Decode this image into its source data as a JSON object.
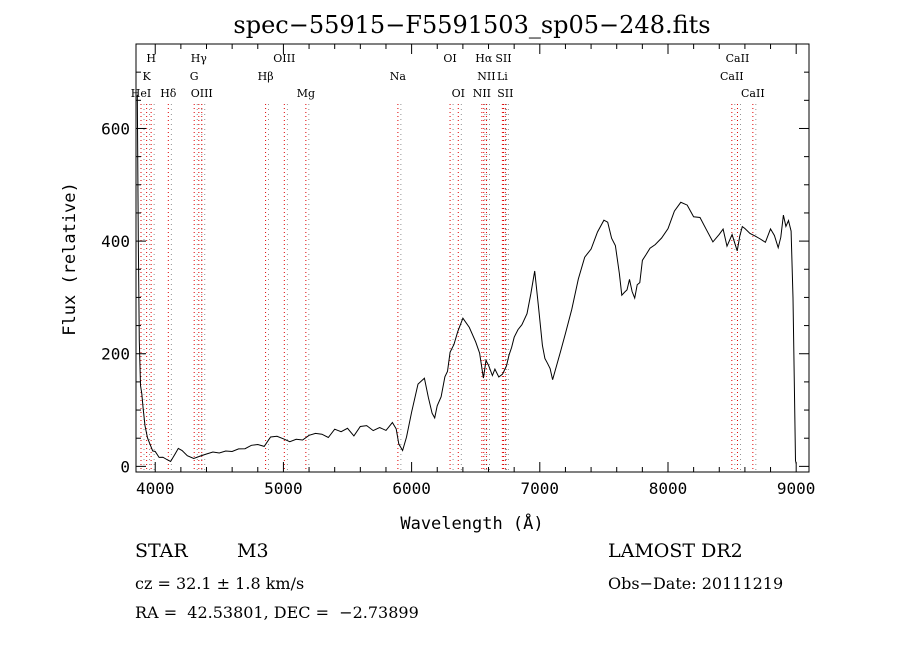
{
  "chart_data": {
    "type": "line",
    "title": "spec−55915−F5591503_sp05−248.fits",
    "xlabel": "Wavelength (Å)",
    "ylabel": "Flux (relative)",
    "xlim": [
      3850,
      9100
    ],
    "ylim": [
      -10,
      750
    ],
    "x_ticks": [
      4000,
      5000,
      6000,
      7000,
      8000,
      9000
    ],
    "y_ticks": [
      0,
      200,
      400,
      600
    ],
    "grid": false,
    "series": [
      {
        "name": "flux",
        "x": [
          3860,
          3868,
          3876,
          3885,
          3895,
          3905,
          3920,
          3940,
          3960,
          3980,
          4000,
          4030,
          4060,
          4090,
          4120,
          4150,
          4180,
          4210,
          4250,
          4300,
          4350,
          4400,
          4450,
          4500,
          4550,
          4600,
          4650,
          4700,
          4750,
          4800,
          4850,
          4900,
          4950,
          5000,
          5050,
          5100,
          5150,
          5200,
          5250,
          5300,
          5350,
          5400,
          5450,
          5500,
          5550,
          5600,
          5650,
          5700,
          5750,
          5800,
          5850,
          5880,
          5900,
          5930,
          5960,
          6000,
          6050,
          6100,
          6130,
          6160,
          6180,
          6200,
          6230,
          6260,
          6280,
          6300,
          6330,
          6360,
          6400,
          6450,
          6500,
          6530,
          6560,
          6580,
          6600,
          6630,
          6650,
          6680,
          6710,
          6740,
          6760,
          6780,
          6800,
          6830,
          6860,
          6900,
          6930,
          6960,
          6990,
          7020,
          7040,
          7060,
          7080,
          7100,
          7130,
          7160,
          7200,
          7250,
          7300,
          7350,
          7400,
          7450,
          7500,
          7530,
          7560,
          7590,
          7620,
          7640,
          7660,
          7680,
          7700,
          7720,
          7740,
          7760,
          7780,
          7800,
          7830,
          7860,
          7900,
          7950,
          8000,
          8050,
          8100,
          8150,
          8200,
          8250,
          8300,
          8350,
          8400,
          8430,
          8460,
          8500,
          8540,
          8560,
          8580,
          8600,
          8640,
          8680,
          8720,
          8760,
          8800,
          8830,
          8860,
          8880,
          8900,
          8920,
          8940,
          8960,
          8975,
          8985,
          8995,
          9000
        ],
        "values": [
          660,
          400,
          220,
          140,
          125,
          100,
          70,
          50,
          40,
          30,
          30,
          20,
          20,
          15,
          10,
          20,
          30,
          25,
          15,
          10,
          15,
          20,
          25,
          25,
          30,
          30,
          35,
          35,
          40,
          40,
          35,
          50,
          50,
          45,
          40,
          45,
          45,
          55,
          60,
          60,
          55,
          70,
          65,
          70,
          55,
          70,
          70,
          60,
          65,
          60,
          75,
          65,
          40,
          30,
          55,
          100,
          150,
          160,
          125,
          95,
          85,
          105,
          120,
          155,
          165,
          200,
          215,
          240,
          265,
          250,
          225,
          205,
          160,
          190,
          180,
          160,
          170,
          155,
          160,
          175,
          195,
          210,
          230,
          245,
          255,
          275,
          310,
          350,
          285,
          215,
          190,
          180,
          170,
          150,
          175,
          200,
          235,
          280,
          335,
          375,
          390,
          420,
          440,
          435,
          405,
          390,
          340,
          300,
          305,
          310,
          330,
          310,
          300,
          325,
          330,
          370,
          380,
          390,
          395,
          405,
          420,
          450,
          465,
          460,
          440,
          440,
          420,
          400,
          415,
          425,
          395,
          415,
          385,
          410,
          425,
          420,
          410,
          405,
          400,
          395,
          420,
          410,
          390,
          410,
          450,
          430,
          440,
          420,
          300,
          150,
          10,
          5
        ]
      }
    ],
    "emission_lines": [
      {
        "label": "H",
        "x": 3968,
        "row": 0
      },
      {
        "label": "K",
        "x": 3933,
        "row": 1
      },
      {
        "label": "HeI",
        "x": 3889,
        "row": 2
      },
      {
        "label": "Hδ",
        "x": 4102,
        "row": 2
      },
      {
        "label": "Hγ",
        "x": 4340,
        "row": 0
      },
      {
        "label": "G",
        "x": 4304,
        "row": 1
      },
      {
        "label": "OIII",
        "x": 4363,
        "row": 2
      },
      {
        "label": "OIII",
        "x": 5007,
        "row": 0
      },
      {
        "label": "Hβ",
        "x": 4861,
        "row": 1
      },
      {
        "label": "Mg",
        "x": 5175,
        "row": 2
      },
      {
        "label": "Na",
        "x": 5893,
        "row": 1
      },
      {
        "label": "OI",
        "x": 6300,
        "row": 0
      },
      {
        "label": "OI",
        "x": 6364,
        "row": 2
      },
      {
        "label": "Hα",
        "x": 6563,
        "row": 0
      },
      {
        "label": "SII",
        "x": 6717,
        "row": 0
      },
      {
        "label": "NII",
        "x": 6584,
        "row": 1
      },
      {
        "label": "Li",
        "x": 6708,
        "row": 1
      },
      {
        "label": "NII",
        "x": 6548,
        "row": 2
      },
      {
        "label": "SII",
        "x": 6731,
        "row": 2
      },
      {
        "label": "CaII",
        "x": 8542,
        "row": 0
      },
      {
        "label": "CaII",
        "x": 8498,
        "row": 1
      },
      {
        "label": "CaII",
        "x": 8662,
        "row": 2
      }
    ]
  },
  "info": {
    "object_class": "STAR",
    "subclass": "M3",
    "survey": "LAMOST DR2",
    "cz": "cz = 32.1 ± 1.8 km/s",
    "obs_date": "Obs−Date: 20111219",
    "coords": "RA =  42.53801, DEC =  −2.73899"
  },
  "colors": {
    "line_marker": "#e00000",
    "grey_marker": "#777777",
    "axis": "#000000"
  }
}
